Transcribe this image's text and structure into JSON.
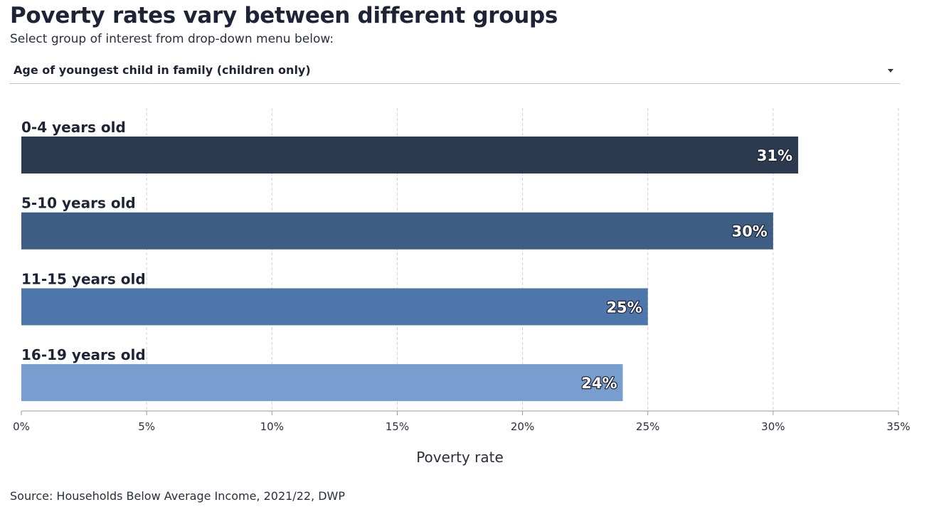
{
  "title": "Poverty rates vary between different groups",
  "subtitle": "Select group of interest from drop-down menu below:",
  "dropdown": {
    "selected": "Age of youngest child in family (children only)",
    "caret_icon": "caret-down-icon"
  },
  "source": "Source: Households Below Average Income, 2021/22, DWP",
  "chart_data": {
    "type": "bar",
    "orientation": "horizontal",
    "categories": [
      "0-4 years old",
      "5-10 years old",
      "11-15 years old",
      "16-19 years old"
    ],
    "values": [
      31,
      30,
      25,
      24
    ],
    "data_labels": [
      "31%",
      "30%",
      "25%",
      "24%"
    ],
    "colors": [
      "#2c3a50",
      "#3e5d83",
      "#4d77ab",
      "#789dcf"
    ],
    "xlabel": "Poverty rate",
    "xlim": [
      0,
      35
    ],
    "xticks": [
      0,
      5,
      10,
      15,
      20,
      25,
      30,
      35
    ],
    "xtick_labels": [
      "0%",
      "5%",
      "10%",
      "15%",
      "20%",
      "25%",
      "30%",
      "35%"
    ],
    "grid": "vertical dashed",
    "legend": "none"
  }
}
